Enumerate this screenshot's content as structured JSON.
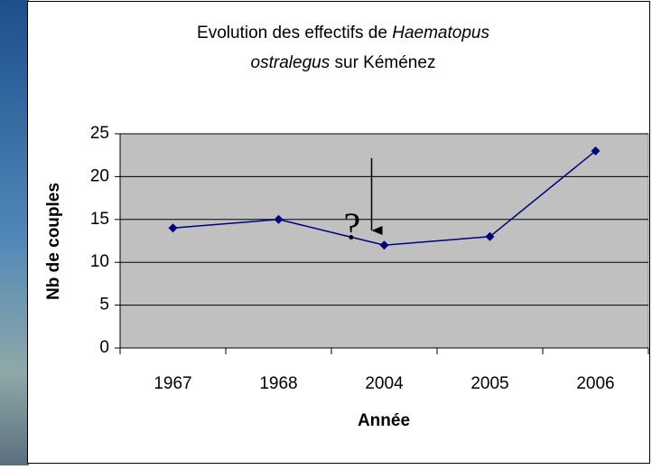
{
  "chart_data": {
    "type": "line",
    "title_lines": [
      [
        {
          "text": "Evolution des effectifs de ",
          "italic": false
        },
        {
          "text": "Haematopus",
          "italic": true
        }
      ],
      [
        {
          "text": "ostralegus",
          "italic": true
        },
        {
          "text": " sur Kéménez",
          "italic": false
        }
      ]
    ],
    "xlabel": "Année",
    "ylabel": "Nb de couples",
    "categories": [
      "1967",
      "1968",
      "2004",
      "2005",
      "2006"
    ],
    "series": [
      {
        "name": "Nb de couples",
        "color": "#000080",
        "values": [
          14,
          15,
          12,
          13,
          23
        ]
      }
    ],
    "ylim": [
      0,
      25
    ],
    "yticks": [
      0,
      5,
      10,
      15,
      20,
      25
    ],
    "grid": true,
    "annotation": {
      "text": "?",
      "category_index": 2
    }
  }
}
